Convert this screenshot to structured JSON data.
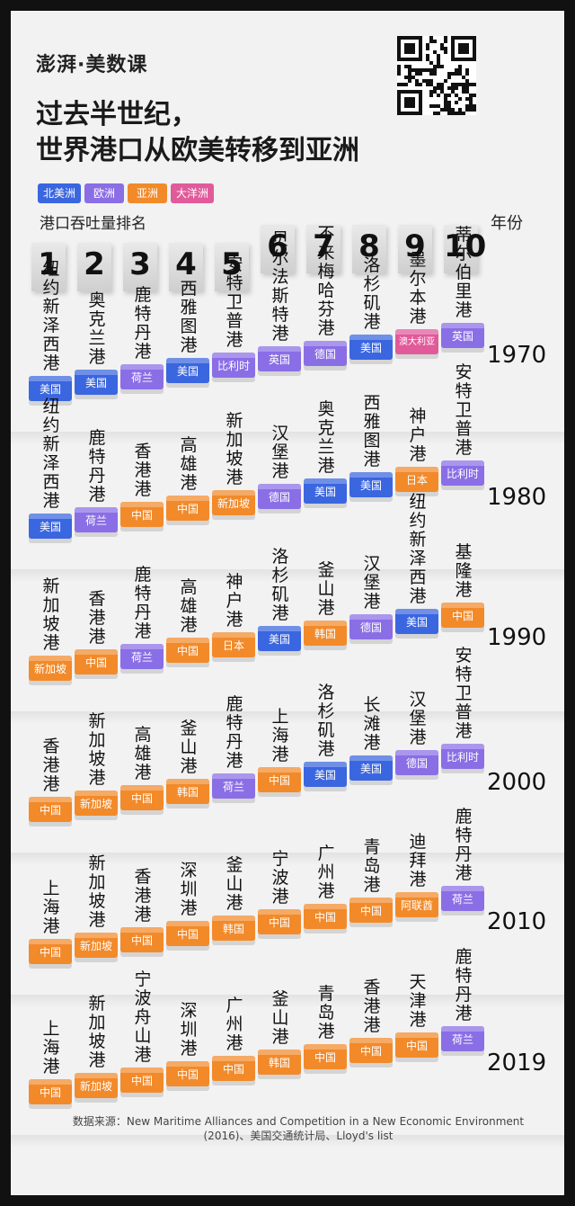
{
  "brand": "澎湃·美数课",
  "title": [
    "过去半世纪，",
    "世界港口从欧美转移到亚洲"
  ],
  "legend": [
    {
      "label": "北美洲",
      "color": "#3a66e0"
    },
    {
      "label": "欧洲",
      "color": "#8a6ee6"
    },
    {
      "label": "亚洲",
      "color": "#f28a2a"
    },
    {
      "label": "大洋洲",
      "color": "#e15a9a"
    }
  ],
  "rank_heading": "港口吞吐量排名",
  "year_heading": "年份",
  "chart_data": {
    "type": "table",
    "title": "过去半世纪，世界港口从欧美转移到亚洲",
    "columns": [
      "1",
      "2",
      "3",
      "4",
      "5",
      "6",
      "7",
      "8",
      "9",
      "10"
    ],
    "rows": [
      {
        "year": "1970",
        "ports": [
          {
            "name": "纽约新泽西港",
            "country": "美国",
            "color": "#3a66e0"
          },
          {
            "name": "奥克兰港",
            "country": "美国",
            "color": "#3a66e0"
          },
          {
            "name": "鹿特丹港",
            "country": "荷兰",
            "color": "#8a6ee6"
          },
          {
            "name": "西雅图港",
            "country": "美国",
            "color": "#3a66e0"
          },
          {
            "name": "安特卫普港",
            "country": "比利时",
            "color": "#8a6ee6"
          },
          {
            "name": "贝尔法斯特港",
            "country": "英国",
            "color": "#8a6ee6"
          },
          {
            "name": "不来梅哈芬港",
            "country": "德国",
            "color": "#8a6ee6"
          },
          {
            "name": "洛杉矶港",
            "country": "美国",
            "color": "#3a66e0"
          },
          {
            "name": "墨尔本港",
            "country": "澳大利亚",
            "color": "#e15a9a"
          },
          {
            "name": "蒂尔伯里港",
            "country": "英国",
            "color": "#8a6ee6"
          }
        ]
      },
      {
        "year": "1980",
        "ports": [
          {
            "name": "纽约新泽西港",
            "country": "美国",
            "color": "#3a66e0"
          },
          {
            "name": "鹿特丹港",
            "country": "荷兰",
            "color": "#8a6ee6"
          },
          {
            "name": "香港港",
            "country": "中国",
            "color": "#f28a2a"
          },
          {
            "name": "高雄港",
            "country": "中国",
            "color": "#f28a2a"
          },
          {
            "name": "新加坡港",
            "country": "新加坡",
            "color": "#f28a2a"
          },
          {
            "name": "汉堡港",
            "country": "德国",
            "color": "#8a6ee6"
          },
          {
            "name": "奥克兰港",
            "country": "美国",
            "color": "#3a66e0"
          },
          {
            "name": "西雅图港",
            "country": "美国",
            "color": "#3a66e0"
          },
          {
            "name": "神户港",
            "country": "日本",
            "color": "#f28a2a"
          },
          {
            "name": "安特卫普港",
            "country": "比利时",
            "color": "#8a6ee6"
          }
        ]
      },
      {
        "year": "1990",
        "ports": [
          {
            "name": "新加坡港",
            "country": "新加坡",
            "color": "#f28a2a"
          },
          {
            "name": "香港港",
            "country": "中国",
            "color": "#f28a2a"
          },
          {
            "name": "鹿特丹港",
            "country": "荷兰",
            "color": "#8a6ee6"
          },
          {
            "name": "高雄港",
            "country": "中国",
            "color": "#f28a2a"
          },
          {
            "name": "神户港",
            "country": "日本",
            "color": "#f28a2a"
          },
          {
            "name": "洛杉矶港",
            "country": "美国",
            "color": "#3a66e0"
          },
          {
            "name": "釜山港",
            "country": "韩国",
            "color": "#f28a2a"
          },
          {
            "name": "汉堡港",
            "country": "德国",
            "color": "#8a6ee6"
          },
          {
            "name": "纽约新泽西港",
            "country": "美国",
            "color": "#3a66e0"
          },
          {
            "name": "基隆港",
            "country": "中国",
            "color": "#f28a2a"
          }
        ]
      },
      {
        "year": "2000",
        "ports": [
          {
            "name": "香港港",
            "country": "中国",
            "color": "#f28a2a"
          },
          {
            "name": "新加坡港",
            "country": "新加坡",
            "color": "#f28a2a"
          },
          {
            "name": "高雄港",
            "country": "中国",
            "color": "#f28a2a"
          },
          {
            "name": "釜山港",
            "country": "韩国",
            "color": "#f28a2a"
          },
          {
            "name": "鹿特丹港",
            "country": "荷兰",
            "color": "#8a6ee6"
          },
          {
            "name": "上海港",
            "country": "中国",
            "color": "#f28a2a"
          },
          {
            "name": "洛杉矶港",
            "country": "美国",
            "color": "#3a66e0"
          },
          {
            "name": "长滩港",
            "country": "美国",
            "color": "#3a66e0"
          },
          {
            "name": "汉堡港",
            "country": "德国",
            "color": "#8a6ee6"
          },
          {
            "name": "安特卫普港",
            "country": "比利时",
            "color": "#8a6ee6"
          }
        ]
      },
      {
        "year": "2010",
        "ports": [
          {
            "name": "上海港",
            "country": "中国",
            "color": "#f28a2a"
          },
          {
            "name": "新加坡港",
            "country": "新加坡",
            "color": "#f28a2a"
          },
          {
            "name": "香港港",
            "country": "中国",
            "color": "#f28a2a"
          },
          {
            "name": "深圳港",
            "country": "中国",
            "color": "#f28a2a"
          },
          {
            "name": "釜山港",
            "country": "韩国",
            "color": "#f28a2a"
          },
          {
            "name": "宁波港",
            "country": "中国",
            "color": "#f28a2a"
          },
          {
            "name": "广州港",
            "country": "中国",
            "color": "#f28a2a"
          },
          {
            "name": "青岛港",
            "country": "中国",
            "color": "#f28a2a"
          },
          {
            "name": "迪拜港",
            "country": "阿联酋",
            "color": "#f28a2a"
          },
          {
            "name": "鹿特丹港",
            "country": "荷兰",
            "color": "#8a6ee6"
          }
        ]
      },
      {
        "year": "2019",
        "ports": [
          {
            "name": "上海港",
            "country": "中国",
            "color": "#f28a2a"
          },
          {
            "name": "新加坡港",
            "country": "新加坡",
            "color": "#f28a2a"
          },
          {
            "name": "宁波舟山港",
            "country": "中国",
            "color": "#f28a2a"
          },
          {
            "name": "深圳港",
            "country": "中国",
            "color": "#f28a2a"
          },
          {
            "name": "广州港",
            "country": "中国",
            "color": "#f28a2a"
          },
          {
            "name": "釜山港",
            "country": "韩国",
            "color": "#f28a2a"
          },
          {
            "name": "青岛港",
            "country": "中国",
            "color": "#f28a2a"
          },
          {
            "name": "香港港",
            "country": "中国",
            "color": "#f28a2a"
          },
          {
            "name": "天津港",
            "country": "中国",
            "color": "#f28a2a"
          },
          {
            "name": "鹿特丹港",
            "country": "荷兰",
            "color": "#8a6ee6"
          }
        ]
      }
    ]
  },
  "source": "数据来源：New Maritime Alliances and Competition in a New Economic Environment (2016)、美国交通统计局、Lloyd's list"
}
